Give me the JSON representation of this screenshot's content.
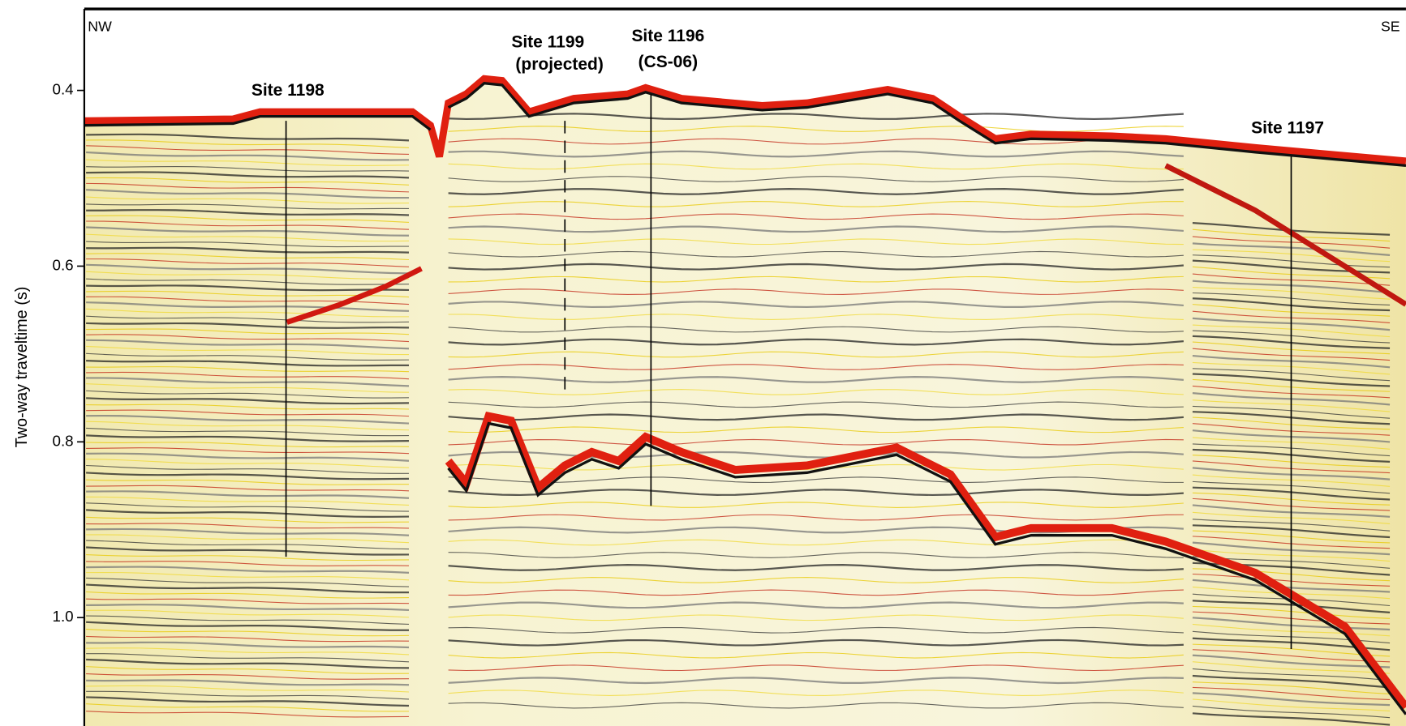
{
  "axis": {
    "label": "Two-way traveltime (s)",
    "ticks": [
      "0.4",
      "0.6",
      "0.8",
      "1.0"
    ]
  },
  "directions": {
    "left": "NW",
    "right": "SE"
  },
  "sites": [
    {
      "name": "Site 1198"
    },
    {
      "name": "Site 1199",
      "note": "(projected)"
    },
    {
      "name": "Site 1196",
      "note": "(CS-06)"
    },
    {
      "name": "Site 1197"
    }
  ]
}
